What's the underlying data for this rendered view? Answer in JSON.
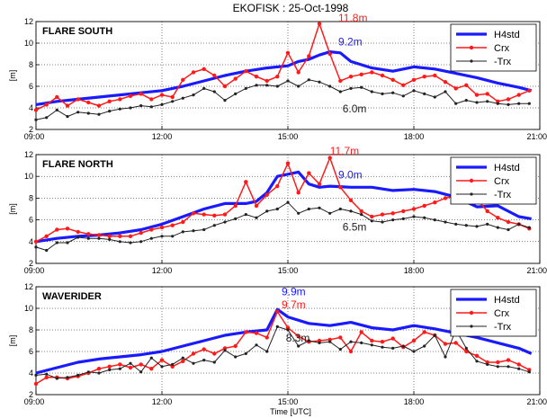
{
  "title": "EKOFISK : 25-Oct-1998",
  "xlabel": "Time [UTC]",
  "colors": {
    "h4std": "#1a1aff",
    "crx": "#ff1a1a",
    "trx": "#222222"
  },
  "legend": [
    "H4std",
    "Crx",
    "-Trx"
  ],
  "chart_data": [
    {
      "type": "line",
      "title": "FLARE SOUTH",
      "ylabel": "[m]",
      "xlim": [
        9,
        21
      ],
      "ylim": [
        2,
        12
      ],
      "xticks": [
        "09:00",
        "12:00",
        "15:00",
        "18:00",
        "21:00"
      ],
      "yticks": [
        "2",
        "4",
        "6",
        "8",
        "10",
        "12"
      ],
      "legend_position": "top-right",
      "annotations": [
        {
          "text": "11.8m",
          "x": 16.2,
          "y": 12.0,
          "color": "crx"
        },
        {
          "text": "9.2m",
          "x": 16.2,
          "y": 9.8,
          "color": "h4std"
        },
        {
          "text": "6.0m",
          "x": 16.3,
          "y": 3.6,
          "color": "trx"
        }
      ],
      "series": [
        {
          "name": "H4std",
          "color": "h4std",
          "width": 3.2,
          "marker": false,
          "x": [
            9.0,
            9.5,
            10.0,
            10.5,
            11.0,
            11.5,
            12.0,
            12.5,
            13.0,
            13.5,
            14.0,
            14.5,
            15.0,
            15.25,
            15.5,
            15.75,
            16.0,
            16.25,
            16.5,
            17.0,
            17.5,
            18.0,
            18.5,
            19.0,
            19.5,
            20.0,
            20.5,
            20.8
          ],
          "y": [
            4.3,
            4.6,
            4.8,
            5.0,
            5.2,
            5.4,
            5.6,
            6.0,
            6.5,
            7.0,
            7.4,
            7.7,
            7.9,
            8.3,
            8.5,
            8.9,
            9.2,
            9.1,
            8.3,
            7.7,
            7.4,
            7.8,
            7.6,
            7.2,
            6.8,
            6.3,
            5.9,
            5.6
          ]
        },
        {
          "name": "Crx",
          "color": "crx",
          "width": 1.5,
          "marker": true,
          "x": [
            9.0,
            9.25,
            9.5,
            9.75,
            10.0,
            10.25,
            10.5,
            10.75,
            11.0,
            11.25,
            11.5,
            11.75,
            12.0,
            12.25,
            12.5,
            12.75,
            13.0,
            13.25,
            13.5,
            13.75,
            14.0,
            14.25,
            14.5,
            14.75,
            15.0,
            15.25,
            15.5,
            15.75,
            16.0,
            16.25,
            16.5,
            16.75,
            17.0,
            17.25,
            17.5,
            17.75,
            18.0,
            18.25,
            18.5,
            18.75,
            19.0,
            19.25,
            19.5,
            19.75,
            20.0,
            20.25,
            20.5,
            20.75
          ],
          "y": [
            3.8,
            4.3,
            5.0,
            4.2,
            4.8,
            4.5,
            4.2,
            4.6,
            4.8,
            5.1,
            5.3,
            4.8,
            5.2,
            5.0,
            6.6,
            7.3,
            7.6,
            7.0,
            6.0,
            6.7,
            7.4,
            6.9,
            6.5,
            6.9,
            9.1,
            7.3,
            8.8,
            11.8,
            9.0,
            6.5,
            6.9,
            7.1,
            7.3,
            7.0,
            6.6,
            6.1,
            6.6,
            6.9,
            7.0,
            6.4,
            5.8,
            6.1,
            5.2,
            5.3,
            4.6,
            4.8,
            5.2,
            5.6
          ]
        },
        {
          "name": "-Trx",
          "color": "trx",
          "width": 1.0,
          "marker": true,
          "x": [
            9.0,
            9.25,
            9.5,
            9.75,
            10.0,
            10.25,
            10.5,
            10.75,
            11.0,
            11.25,
            11.5,
            11.75,
            12.0,
            12.25,
            12.5,
            12.75,
            13.0,
            13.25,
            13.5,
            13.75,
            14.0,
            14.25,
            14.5,
            14.75,
            15.0,
            15.25,
            15.5,
            15.75,
            16.0,
            16.25,
            16.5,
            16.75,
            17.0,
            17.25,
            17.5,
            17.75,
            18.0,
            18.25,
            18.5,
            18.75,
            19.0,
            19.25,
            19.5,
            19.75,
            20.0,
            20.25,
            20.5,
            20.75
          ],
          "y": [
            2.9,
            3.1,
            3.8,
            3.2,
            3.6,
            3.5,
            3.4,
            3.7,
            3.9,
            4.0,
            4.2,
            4.1,
            4.3,
            4.6,
            4.9,
            5.2,
            5.8,
            5.5,
            4.7,
            5.3,
            5.8,
            6.1,
            6.1,
            6.0,
            6.5,
            6.0,
            6.6,
            6.4,
            6.0,
            5.5,
            5.8,
            5.9,
            5.5,
            5.3,
            5.4,
            5.1,
            5.6,
            5.3,
            5.0,
            5.5,
            4.4,
            4.7,
            4.5,
            4.6,
            4.4,
            4.3,
            4.4,
            4.4
          ]
        }
      ]
    },
    {
      "type": "line",
      "title": "FLARE NORTH",
      "ylabel": "[m]",
      "xlim": [
        9,
        21
      ],
      "ylim": [
        2,
        12
      ],
      "xticks": [
        "09:00",
        "12:00",
        "15:00",
        "18:00",
        "21:00"
      ],
      "yticks": [
        "2",
        "4",
        "6",
        "8",
        "10",
        "12"
      ],
      "legend_position": "top-right",
      "annotations": [
        {
          "text": "11.7m",
          "x": 16.0,
          "y": 12.0,
          "color": "crx"
        },
        {
          "text": "9.0m",
          "x": 16.2,
          "y": 9.8,
          "color": "h4std"
        },
        {
          "text": "6.5m",
          "x": 16.3,
          "y": 5.0,
          "color": "trx"
        }
      ],
      "series": [
        {
          "name": "H4std",
          "color": "h4std",
          "width": 3.2,
          "marker": false,
          "x": [
            9.0,
            9.5,
            10.0,
            10.5,
            11.0,
            11.5,
            12.0,
            12.5,
            13.0,
            13.5,
            14.0,
            14.25,
            14.5,
            14.75,
            15.0,
            15.25,
            15.5,
            15.75,
            16.0,
            16.5,
            17.0,
            17.5,
            18.0,
            18.5,
            19.0,
            19.5,
            20.0,
            20.5,
            20.8
          ],
          "y": [
            4.0,
            4.3,
            4.5,
            4.6,
            4.8,
            5.1,
            5.6,
            6.3,
            7.0,
            7.5,
            7.5,
            7.7,
            8.5,
            10.0,
            10.2,
            10.4,
            9.3,
            9.0,
            9.1,
            9.0,
            9.0,
            8.7,
            8.8,
            8.6,
            8.1,
            7.2,
            7.3,
            6.3,
            6.1
          ]
        },
        {
          "name": "Crx",
          "color": "crx",
          "width": 1.5,
          "marker": true,
          "x": [
            9.0,
            9.25,
            9.5,
            9.75,
            10.0,
            10.25,
            10.5,
            10.75,
            11.0,
            11.25,
            11.5,
            11.75,
            12.0,
            12.25,
            12.5,
            12.75,
            13.0,
            13.25,
            13.5,
            13.75,
            14.0,
            14.25,
            14.5,
            14.75,
            15.0,
            15.25,
            15.5,
            15.75,
            16.0,
            16.25,
            16.5,
            16.75,
            17.0,
            17.25,
            17.5,
            17.75,
            18.0,
            18.25,
            18.5,
            18.75,
            19.0,
            19.25,
            19.5,
            19.75,
            20.0,
            20.25,
            20.5,
            20.75
          ],
          "y": [
            4.0,
            4.5,
            5.1,
            5.2,
            4.9,
            4.7,
            4.6,
            4.5,
            4.5,
            4.5,
            4.8,
            5.1,
            5.3,
            5.5,
            5.8,
            6.6,
            6.5,
            6.4,
            6.5,
            7.3,
            9.5,
            7.3,
            8.3,
            9.1,
            11.2,
            8.5,
            10.3,
            9.3,
            11.7,
            9.0,
            7.8,
            6.8,
            6.3,
            6.5,
            6.6,
            6.8,
            7.0,
            7.3,
            7.6,
            8.0,
            8.2,
            8.6,
            7.9,
            6.8,
            6.2,
            5.8,
            5.6,
            5.2
          ]
        },
        {
          "name": "-Trx",
          "color": "trx",
          "width": 1.0,
          "marker": true,
          "x": [
            9.0,
            9.25,
            9.5,
            9.75,
            10.0,
            10.25,
            10.5,
            10.75,
            11.0,
            11.25,
            11.5,
            11.75,
            12.0,
            12.25,
            12.5,
            12.75,
            13.0,
            13.25,
            13.5,
            13.75,
            14.0,
            14.25,
            14.5,
            14.75,
            15.0,
            15.25,
            15.5,
            15.75,
            16.0,
            16.25,
            16.5,
            16.75,
            17.0,
            17.25,
            17.5,
            17.75,
            18.0,
            18.25,
            18.5,
            18.75,
            19.0,
            19.25,
            19.5,
            19.75,
            20.0,
            20.25,
            20.5,
            20.75
          ],
          "y": [
            3.5,
            3.2,
            3.9,
            3.9,
            4.4,
            4.3,
            4.3,
            4.2,
            4.0,
            3.9,
            4.0,
            4.3,
            4.5,
            4.5,
            4.9,
            5.0,
            5.1,
            5.5,
            5.8,
            6.1,
            6.5,
            6.2,
            6.8,
            7.0,
            7.6,
            6.6,
            7.0,
            7.1,
            6.6,
            7.0,
            6.8,
            6.5,
            5.9,
            5.8,
            6.0,
            6.1,
            6.3,
            6.2,
            6.0,
            5.8,
            5.6,
            5.5,
            5.4,
            5.6,
            5.3,
            5.1,
            5.6,
            5.3
          ]
        }
      ]
    },
    {
      "type": "line",
      "title": "WAVERIDER",
      "ylabel": "[m]",
      "xlim": [
        9,
        21
      ],
      "ylim": [
        2,
        12
      ],
      "xticks": [
        "09:00",
        "12:00",
        "15:00",
        "18:00",
        "21:00"
      ],
      "yticks": [
        "2",
        "4",
        "6",
        "8",
        "10",
        "12"
      ],
      "legend_position": "top-right",
      "annotations": [
        {
          "text": "9.9m",
          "x": 14.85,
          "y": 11.2,
          "color": "h4std"
        },
        {
          "text": "9.7m",
          "x": 14.85,
          "y": 10.0,
          "color": "crx"
        },
        {
          "text": "8.3m",
          "x": 14.95,
          "y": 6.9,
          "color": "trx"
        }
      ],
      "series": [
        {
          "name": "H4std",
          "color": "h4std",
          "width": 3.2,
          "marker": false,
          "x": [
            9.0,
            9.5,
            10.0,
            10.5,
            11.0,
            11.5,
            12.0,
            12.5,
            13.0,
            13.5,
            14.0,
            14.5,
            14.75,
            15.0,
            15.5,
            16.0,
            16.5,
            17.0,
            17.5,
            18.0,
            18.5,
            19.0,
            19.5,
            20.0,
            20.5,
            20.8
          ],
          "y": [
            4.0,
            4.5,
            5.0,
            5.3,
            5.5,
            5.7,
            6.0,
            6.5,
            7.0,
            7.5,
            7.8,
            8.0,
            9.9,
            9.2,
            8.6,
            8.4,
            8.7,
            8.2,
            8.0,
            8.4,
            8.1,
            7.7,
            7.3,
            6.8,
            6.3,
            5.8
          ]
        },
        {
          "name": "Crx",
          "color": "crx",
          "width": 1.5,
          "marker": true,
          "x": [
            9.0,
            9.25,
            9.5,
            9.75,
            10.0,
            10.25,
            10.5,
            10.75,
            11.0,
            11.25,
            11.5,
            11.75,
            12.0,
            12.25,
            12.5,
            12.75,
            13.0,
            13.25,
            13.5,
            13.75,
            14.0,
            14.25,
            14.5,
            14.75,
            15.0,
            15.25,
            15.5,
            15.75,
            16.0,
            16.25,
            16.5,
            16.75,
            17.0,
            17.25,
            17.5,
            17.75,
            18.0,
            18.25,
            18.5,
            18.75,
            19.0,
            19.25,
            19.5,
            19.75,
            20.0,
            20.25,
            20.5,
            20.75
          ],
          "y": [
            3.0,
            3.6,
            3.6,
            3.5,
            3.7,
            4.0,
            4.4,
            4.6,
            4.8,
            4.5,
            4.8,
            4.4,
            5.2,
            4.6,
            5.1,
            5.8,
            6.2,
            5.8,
            6.3,
            6.5,
            7.8,
            7.7,
            7.3,
            9.7,
            8.2,
            7.4,
            6.9,
            7.0,
            7.1,
            7.3,
            6.0,
            7.8,
            7.0,
            6.9,
            7.2,
            6.4,
            7.0,
            7.8,
            7.5,
            6.7,
            6.8,
            6.0,
            5.6,
            5.0,
            5.0,
            5.2,
            4.8,
            4.3
          ]
        },
        {
          "name": "-Trx",
          "color": "trx",
          "width": 1.0,
          "marker": true,
          "x": [
            9.0,
            9.25,
            9.5,
            9.75,
            10.0,
            10.25,
            10.5,
            10.75,
            11.0,
            11.25,
            11.5,
            11.75,
            12.0,
            12.25,
            12.5,
            12.75,
            13.0,
            13.25,
            13.5,
            13.75,
            14.0,
            14.25,
            14.5,
            14.75,
            15.0,
            15.25,
            15.5,
            15.75,
            16.0,
            16.25,
            16.5,
            16.75,
            17.0,
            17.25,
            17.5,
            17.75,
            18.0,
            18.25,
            18.5,
            18.75,
            19.0,
            19.25,
            19.5,
            19.75,
            20.0,
            20.25,
            20.5,
            20.75
          ],
          "y": [
            3.8,
            3.9,
            3.5,
            3.6,
            3.8,
            4.1,
            4.0,
            4.3,
            4.4,
            4.9,
            4.1,
            5.4,
            4.6,
            4.8,
            5.4,
            4.9,
            5.2,
            5.0,
            6.1,
            5.5,
            5.8,
            6.6,
            6.0,
            8.3,
            8.0,
            6.5,
            7.0,
            6.8,
            6.9,
            6.2,
            6.9,
            6.8,
            6.6,
            6.4,
            6.3,
            6.5,
            6.0,
            6.5,
            7.5,
            5.5,
            8.0,
            6.3,
            5.1,
            4.8,
            4.6,
            4.6,
            4.4,
            4.1
          ]
        }
      ]
    }
  ]
}
